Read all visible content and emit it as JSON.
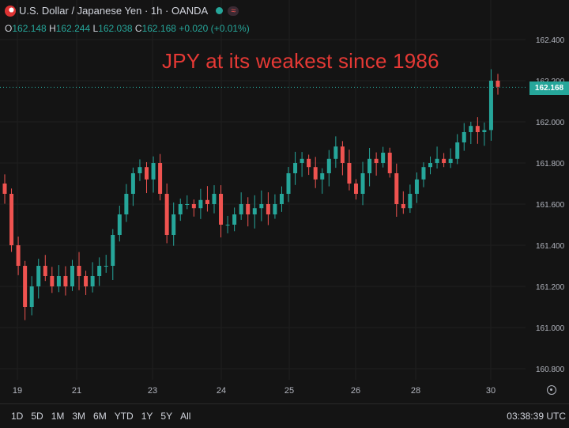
{
  "header": {
    "title": "U.S. Dollar / Japanese Yen · 1h · OANDA",
    "ohlc": {
      "o_label": "O",
      "o": "162.148",
      "h_label": "H",
      "h": "162.244",
      "l_label": "L",
      "l": "162.038",
      "c_label": "C",
      "c": "162.168",
      "change": "+0.020 (+0.01%)"
    }
  },
  "annotation": "JPY at its weakest since 1986",
  "last_price": "162.168",
  "timeframes": [
    "1D",
    "5D",
    "1M",
    "3M",
    "6M",
    "YTD",
    "1Y",
    "5Y",
    "All"
  ],
  "clock": "03:38:39 UTC",
  "colors": {
    "up": "#26a69a",
    "down": "#ef5350",
    "annotation": "#e53935",
    "background": "#141414"
  },
  "chart_data": {
    "type": "candlestick",
    "x_tick_labels": [
      "19",
      "21",
      "23",
      "24",
      "25",
      "26",
      "28",
      "30"
    ],
    "y_tick_labels": [
      "162.400",
      "162.200",
      "162.000",
      "161.800",
      "161.600",
      "161.400",
      "161.200",
      "161.000",
      "160.800"
    ],
    "ylim": [
      160.75,
      162.45
    ],
    "grid": true,
    "last_price": 162.168,
    "series_close_approx": [
      161.65,
      161.4,
      161.3,
      161.1,
      161.2,
      161.3,
      161.25,
      161.2,
      161.25,
      161.2,
      161.3,
      161.25,
      161.2,
      161.25,
      161.3,
      161.3,
      161.45,
      161.55,
      161.65,
      161.75,
      161.78,
      161.72,
      161.8,
      161.65,
      161.45,
      161.55,
      161.6,
      161.6,
      161.58,
      161.62,
      161.6,
      161.65,
      161.5,
      161.5,
      161.55,
      161.6,
      161.55,
      161.58,
      161.6,
      161.55,
      161.6,
      161.65,
      161.75,
      161.8,
      161.82,
      161.78,
      161.72,
      161.75,
      161.82,
      161.88,
      161.8,
      161.7,
      161.65,
      161.75,
      161.82,
      161.8,
      161.85,
      161.75,
      161.6,
      161.58,
      161.65,
      161.72,
      161.78,
      161.8,
      161.82,
      161.8,
      161.82,
      161.9,
      161.95,
      161.98,
      161.95,
      161.96,
      162.2,
      162.17
    ]
  }
}
